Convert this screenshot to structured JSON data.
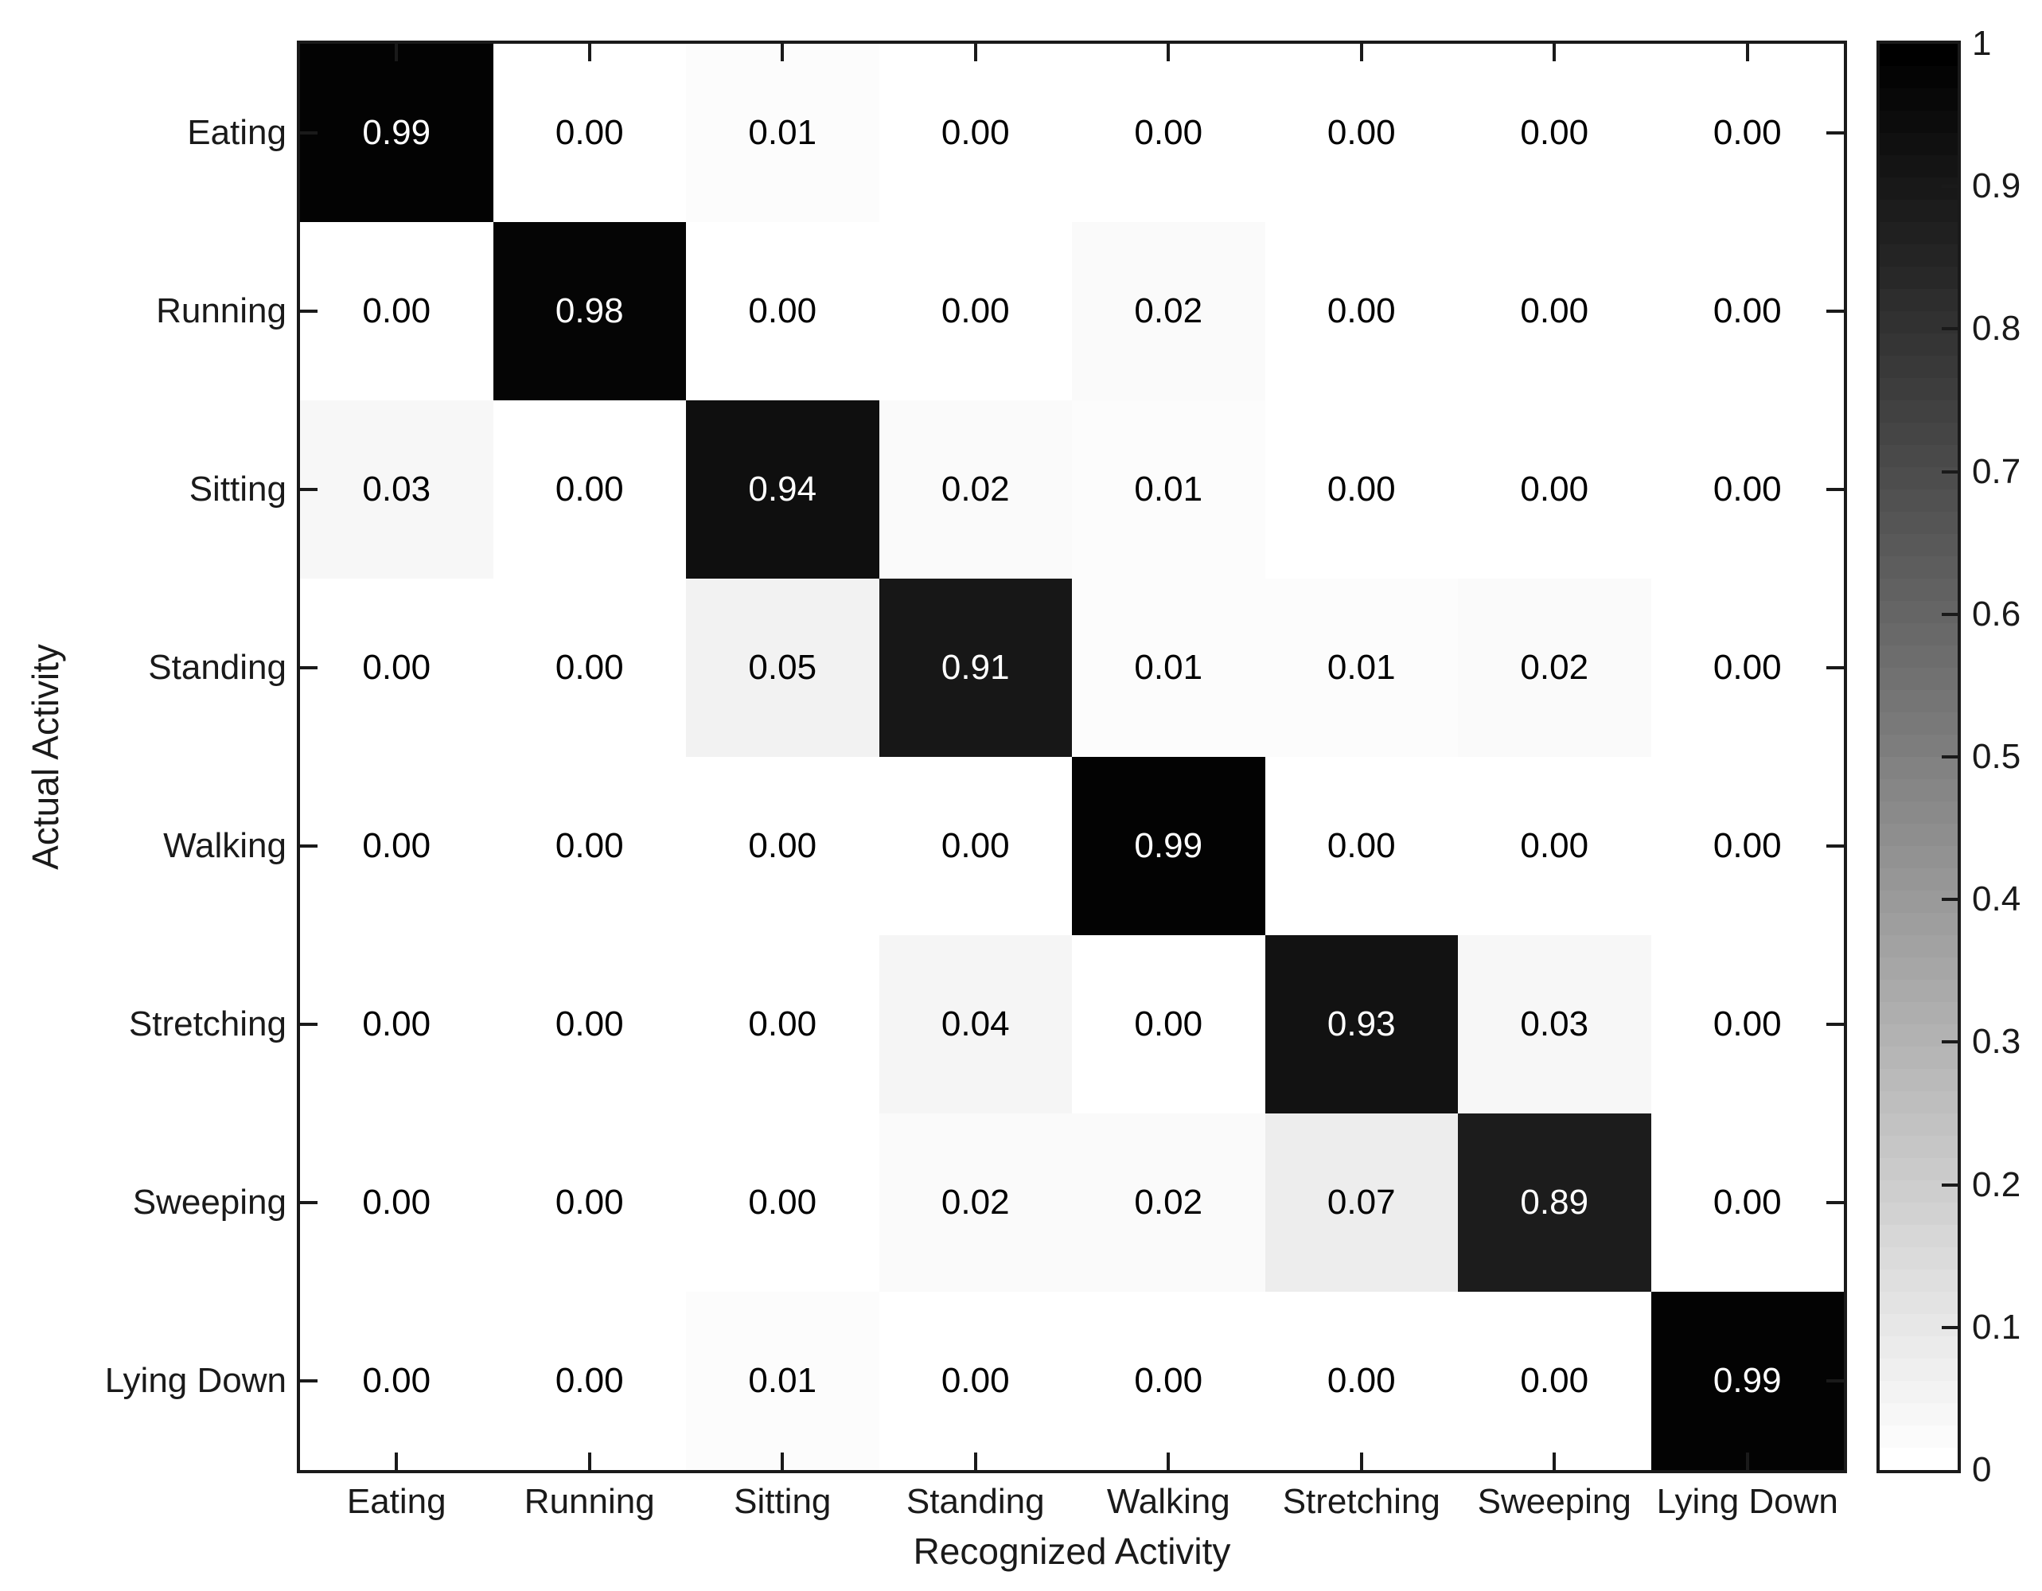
{
  "figure": {
    "background": "#ffffff"
  },
  "chart_data": {
    "type": "heatmap",
    "title": "",
    "xlabel": "Recognized Activity",
    "ylabel": "Actual Activity",
    "x_categories": [
      "Eating",
      "Running",
      "Sitting",
      "Standing",
      "Walking",
      "Stretching",
      "Sweeping",
      "Lying Down"
    ],
    "y_categories": [
      "Eating",
      "Running",
      "Sitting",
      "Standing",
      "Walking",
      "Stretching",
      "Sweeping",
      "Lying Down"
    ],
    "matrix": [
      [
        0.99,
        0.0,
        0.01,
        0.0,
        0.0,
        0.0,
        0.0,
        0.0
      ],
      [
        0.0,
        0.98,
        0.0,
        0.0,
        0.02,
        0.0,
        0.0,
        0.0
      ],
      [
        0.03,
        0.0,
        0.94,
        0.02,
        0.01,
        0.0,
        0.0,
        0.0
      ],
      [
        0.0,
        0.0,
        0.05,
        0.91,
        0.01,
        0.01,
        0.02,
        0.0
      ],
      [
        0.0,
        0.0,
        0.0,
        0.0,
        0.99,
        0.0,
        0.0,
        0.0
      ],
      [
        0.0,
        0.0,
        0.0,
        0.04,
        0.0,
        0.93,
        0.03,
        0.0
      ],
      [
        0.0,
        0.0,
        0.0,
        0.02,
        0.02,
        0.07,
        0.89,
        0.0
      ],
      [
        0.0,
        0.0,
        0.01,
        0.0,
        0.0,
        0.0,
        0.0,
        0.99
      ]
    ],
    "value_decimals": 2,
    "value_range": [
      0,
      1
    ],
    "colormap": {
      "name": "reversed-gray",
      "zero_color": "#ffffff",
      "one_color": "#000000",
      "levels": 64
    },
    "colorbar": {
      "min": 0,
      "max": 1,
      "tick_labels": [
        "1",
        "0.9",
        "0.8",
        "0.7",
        "0.6",
        "0.5",
        "0.4",
        "0.3",
        "0.2",
        "0.1",
        "0"
      ],
      "position": "right"
    },
    "axis_style": {
      "box": true,
      "tick_direction": "in",
      "line_color": "#1a1a1a"
    },
    "text_colors": {
      "axis_text": "#1a1a1a",
      "cell_text_on_dark": "#ffffff",
      "cell_text_on_light": "#000000"
    }
  }
}
